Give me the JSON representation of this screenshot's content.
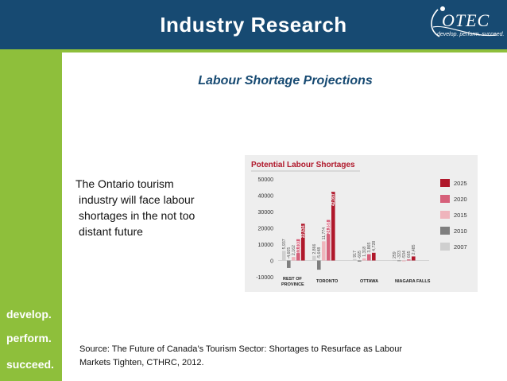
{
  "header": {
    "title": "Industry Research"
  },
  "logo": {
    "text": "OTEC",
    "tagline": "develop. perform. succeed."
  },
  "sidebar": {
    "words": [
      "develop.",
      "perform.",
      "succeed."
    ]
  },
  "subtitle": "Labour Shortage Projections",
  "body_lines": [
    "The Ontario tourism",
    "industry will face labour",
    "shortages in the not too",
    "distant future"
  ],
  "source_lines": [
    "Source: The Future of Canada’s Tourism Sector: Shortages to Resurface as Labour",
    "Markets Tighten, CTHRC, 2012."
  ],
  "colors": {
    "header": "#174a72",
    "sidebar": "#8ebf3b",
    "chart_title": "#b0182b"
  },
  "chart_data": {
    "type": "bar",
    "title": "Potential Labour Shortages",
    "categories": [
      "REST OF PROVINCE",
      "TORONTO",
      "OTTAWA",
      "NIAGARA FALLS"
    ],
    "series": [
      {
        "name": "2007",
        "color": "#cfcfcf",
        "values": [
          5937,
          2866,
          917,
          259
        ]
      },
      {
        "name": "2010",
        "color": "#7f7f7f",
        "values": [
          -4605,
          -5648,
          -665,
          -323
        ]
      },
      {
        "name": "2015",
        "color": "#efb4bc",
        "values": [
          2162,
          11774,
          1318,
          -534
        ]
      },
      {
        "name": "2020",
        "color": "#d6607a",
        "values": [
          13030,
          24858,
          3865,
          665
        ]
      },
      {
        "name": "2025",
        "color": "#b0182b",
        "values": [
          22534,
          42097,
          4728,
          2485
        ]
      }
    ],
    "data_labels": [
      [
        "5,937",
        "-4,605",
        "2,162",
        "13,030",
        "22,534"
      ],
      [
        "2,866",
        "-5,648",
        "11,774",
        "24,858",
        "42,097"
      ],
      [
        "917",
        "-665",
        "1,318",
        "3,865",
        "4,728"
      ],
      [
        "259",
        "-323",
        "-534",
        "665",
        "2,485"
      ]
    ],
    "y_ticks": [
      "50000",
      "40000",
      "30000",
      "20000",
      "10000",
      "0",
      "-10000"
    ],
    "ylim": [
      -10000,
      50000
    ],
    "legend_position": "right"
  }
}
